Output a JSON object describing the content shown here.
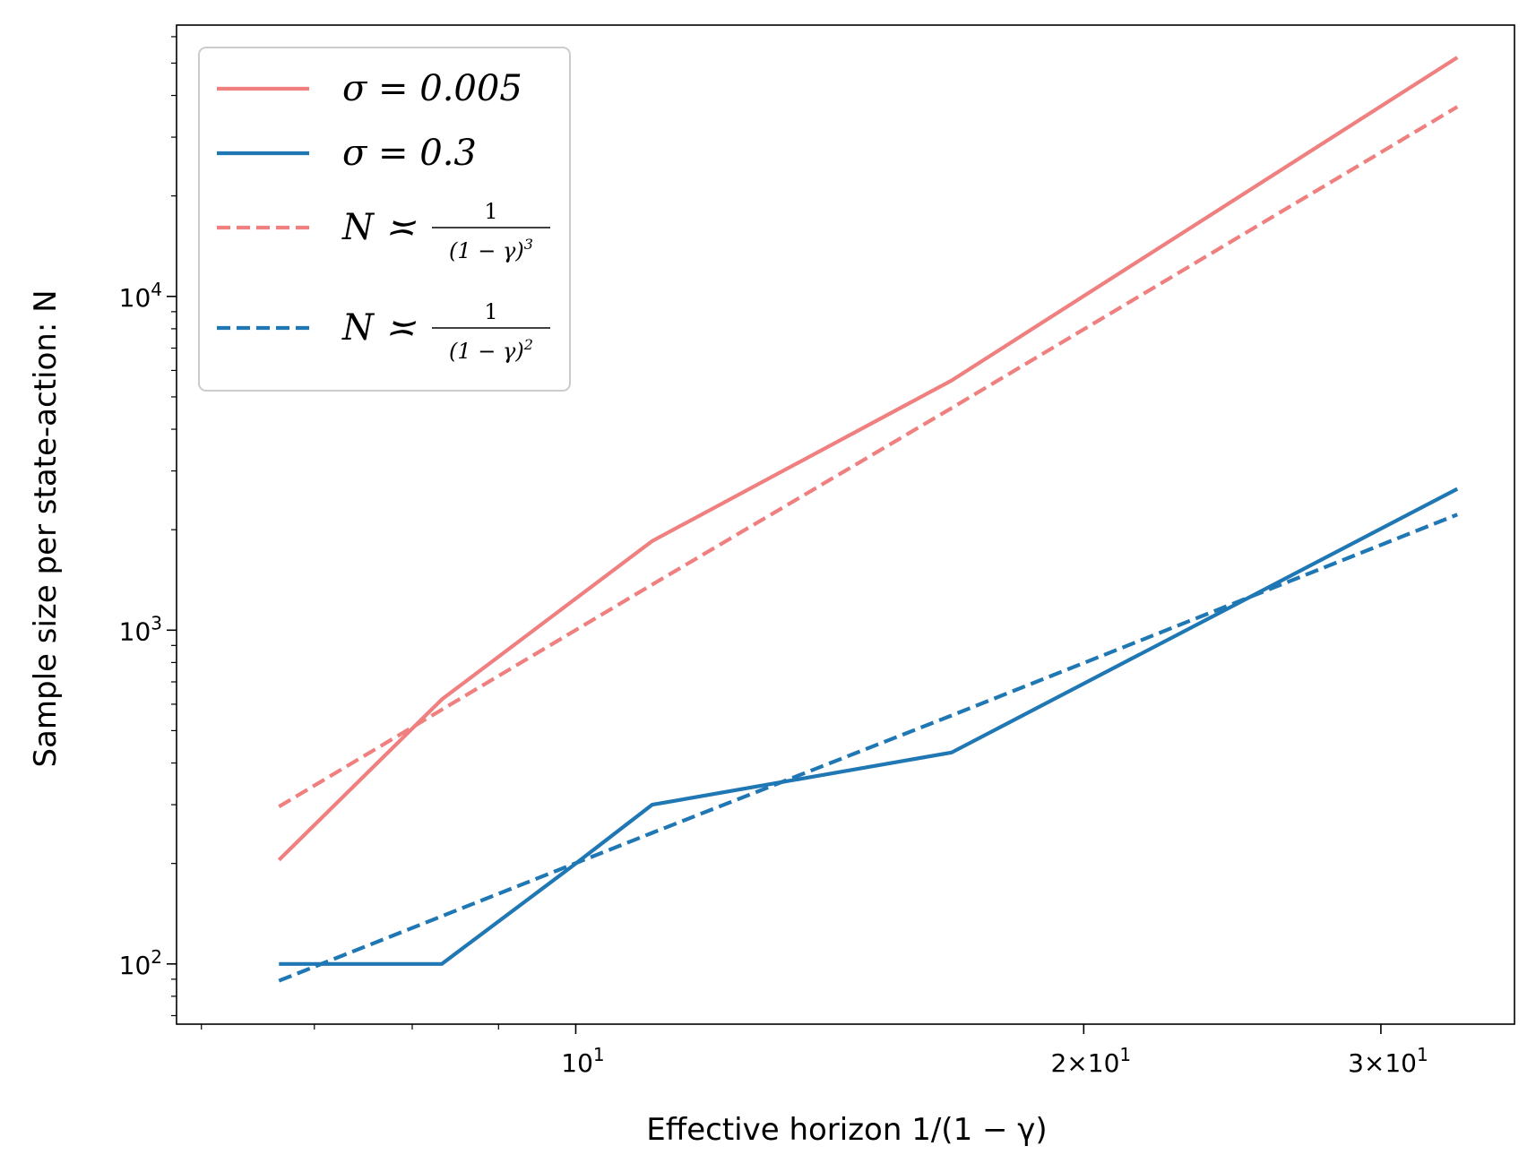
{
  "chart_data": {
    "type": "line",
    "xscale": "log",
    "yscale": "log",
    "xlabel": "Effective horizon 1/(1 − γ)",
    "ylabel": "Sample size per state-action: N",
    "xlim": [
      5.8,
      36
    ],
    "ylim": [
      66,
      65000
    ],
    "xticks": [
      {
        "value": 10,
        "base": "10",
        "exp": "1"
      },
      {
        "value": 20,
        "base": "2×10",
        "exp": "1"
      },
      {
        "value": 30,
        "base": "3×10",
        "exp": "1"
      }
    ],
    "yticks": [
      {
        "value": 100,
        "base": "10",
        "exp": "2"
      },
      {
        "value": 1000,
        "base": "10",
        "exp": "3"
      },
      {
        "value": 10000,
        "base": "10",
        "exp": "4"
      }
    ],
    "series": [
      {
        "name": "σ = 0.005",
        "color": "#f08080",
        "dash": "solid",
        "x": [
          6.67,
          8.33,
          11.1,
          16.7,
          33.3
        ],
        "y": [
          205,
          620,
          1850,
          5600,
          52000
        ]
      },
      {
        "name": "σ = 0.3",
        "color": "#1f77b4",
        "dash": "solid",
        "x": [
          6.67,
          8.33,
          10.0,
          11.1,
          16.7,
          33.3
        ],
        "y": [
          100,
          100,
          200,
          300,
          430,
          2650
        ]
      },
      {
        "name": "N ≍ 1/(1−γ)^3",
        "color": "#f08080",
        "dash": "dashed",
        "x": [
          6.67,
          8.33,
          11.1,
          16.7,
          33.3
        ],
        "y": [
          296,
          578,
          1370,
          4630,
          37000
        ]
      },
      {
        "name": "N ≍ 1/(1−γ)^2",
        "color": "#1f77b4",
        "dash": "dashed",
        "x": [
          6.67,
          8.33,
          11.1,
          16.7,
          33.3
        ],
        "y": [
          89,
          139,
          247,
          555,
          2220
        ]
      }
    ],
    "legend": {
      "position": "top-left",
      "entries": [
        {
          "label": "σ = 0.005"
        },
        {
          "label": "σ = 0.3"
        },
        {
          "label": "N ≍",
          "frac_num": "1",
          "frac_den": "(1 − γ)",
          "frac_exp": "3"
        },
        {
          "label": "N ≍",
          "frac_num": "1",
          "frac_den": "(1 − γ)",
          "frac_exp": "2"
        }
      ]
    }
  }
}
